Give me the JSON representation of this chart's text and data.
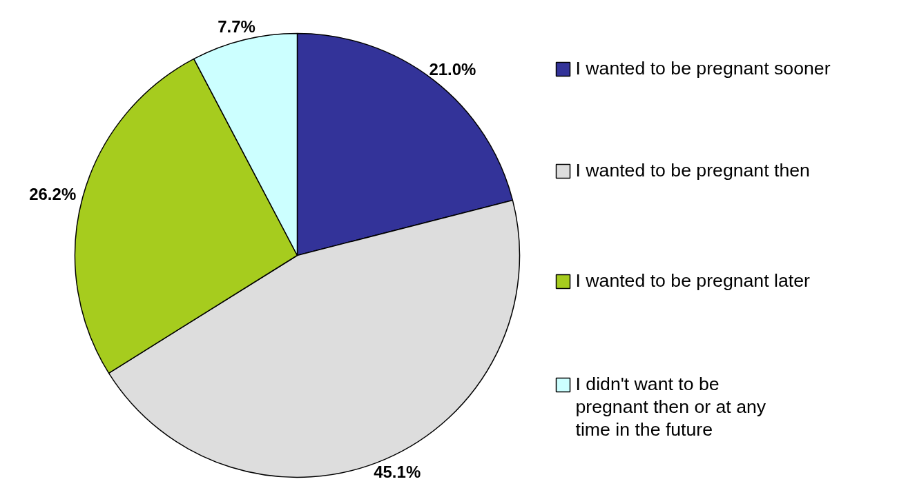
{
  "chart_data": {
    "type": "pie",
    "categories": [
      "I wanted to be pregnant sooner",
      "I wanted to be pregnant then",
      "I wanted to be pregnant later",
      "I didn't want to be pregnant then or at any time in the future"
    ],
    "values": [
      21.0,
      45.1,
      26.2,
      7.7
    ],
    "colors": [
      "#333399",
      "#dddddd",
      "#a6cc1e",
      "#ccffff"
    ],
    "value_labels": [
      "21.0%",
      "45.1%",
      "26.2%",
      "7.7%"
    ],
    "legend": "right"
  }
}
